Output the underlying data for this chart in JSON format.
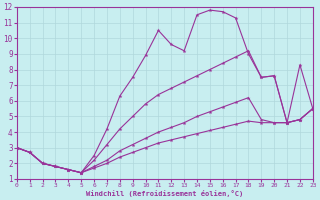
{
  "xlabel": "Windchill (Refroidissement éolien,°C)",
  "xlim": [
    0,
    23
  ],
  "ylim": [
    1,
    12
  ],
  "xticks": [
    0,
    1,
    2,
    3,
    4,
    5,
    6,
    7,
    8,
    9,
    10,
    11,
    12,
    13,
    14,
    15,
    16,
    17,
    18,
    19,
    20,
    21,
    22,
    23
  ],
  "yticks": [
    1,
    2,
    3,
    4,
    5,
    6,
    7,
    8,
    9,
    10,
    11,
    12
  ],
  "background_color": "#c8eef0",
  "grid_color": "#b0d8dc",
  "line_color": "#993399",
  "series": [
    {
      "x": [
        0,
        1,
        2,
        3,
        4,
        5,
        6,
        7,
        8,
        9,
        10,
        11,
        12,
        13,
        14,
        15,
        16,
        17,
        18,
        19,
        20,
        21,
        22,
        23
      ],
      "y": [
        3.0,
        2.7,
        2.0,
        1.8,
        1.6,
        1.4,
        2.5,
        4.2,
        6.3,
        7.5,
        8.9,
        10.5,
        9.6,
        9.2,
        11.5,
        11.8,
        11.7,
        11.3,
        9.0,
        7.5,
        7.6,
        4.6,
        8.3,
        5.5
      ]
    },
    {
      "x": [
        0,
        1,
        2,
        3,
        4,
        5,
        6,
        7,
        8,
        9,
        10,
        11,
        12,
        13,
        14,
        15,
        16,
        17,
        18,
        19,
        20,
        21,
        22,
        23
      ],
      "y": [
        3.0,
        2.7,
        2.0,
        1.8,
        1.6,
        1.4,
        2.2,
        3.2,
        4.2,
        5.0,
        5.8,
        6.4,
        6.8,
        7.2,
        7.6,
        8.0,
        8.4,
        8.8,
        9.2,
        7.5,
        7.6,
        4.6,
        4.8,
        5.5
      ]
    },
    {
      "x": [
        0,
        1,
        2,
        3,
        4,
        5,
        6,
        7,
        8,
        9,
        10,
        11,
        12,
        13,
        14,
        15,
        16,
        17,
        18,
        19,
        20,
        21,
        22,
        23
      ],
      "y": [
        3.0,
        2.7,
        2.0,
        1.8,
        1.6,
        1.4,
        1.8,
        2.2,
        2.8,
        3.2,
        3.6,
        4.0,
        4.3,
        4.6,
        5.0,
        5.3,
        5.6,
        5.9,
        6.2,
        4.8,
        4.6,
        4.6,
        4.8,
        5.5
      ]
    },
    {
      "x": [
        0,
        1,
        2,
        3,
        4,
        5,
        6,
        7,
        8,
        9,
        10,
        11,
        12,
        13,
        14,
        15,
        16,
        17,
        18,
        19,
        20,
        21,
        22,
        23
      ],
      "y": [
        3.0,
        2.7,
        2.0,
        1.8,
        1.6,
        1.4,
        1.7,
        2.0,
        2.4,
        2.7,
        3.0,
        3.3,
        3.5,
        3.7,
        3.9,
        4.1,
        4.3,
        4.5,
        4.7,
        4.6,
        4.6,
        4.6,
        4.8,
        5.5
      ]
    }
  ]
}
